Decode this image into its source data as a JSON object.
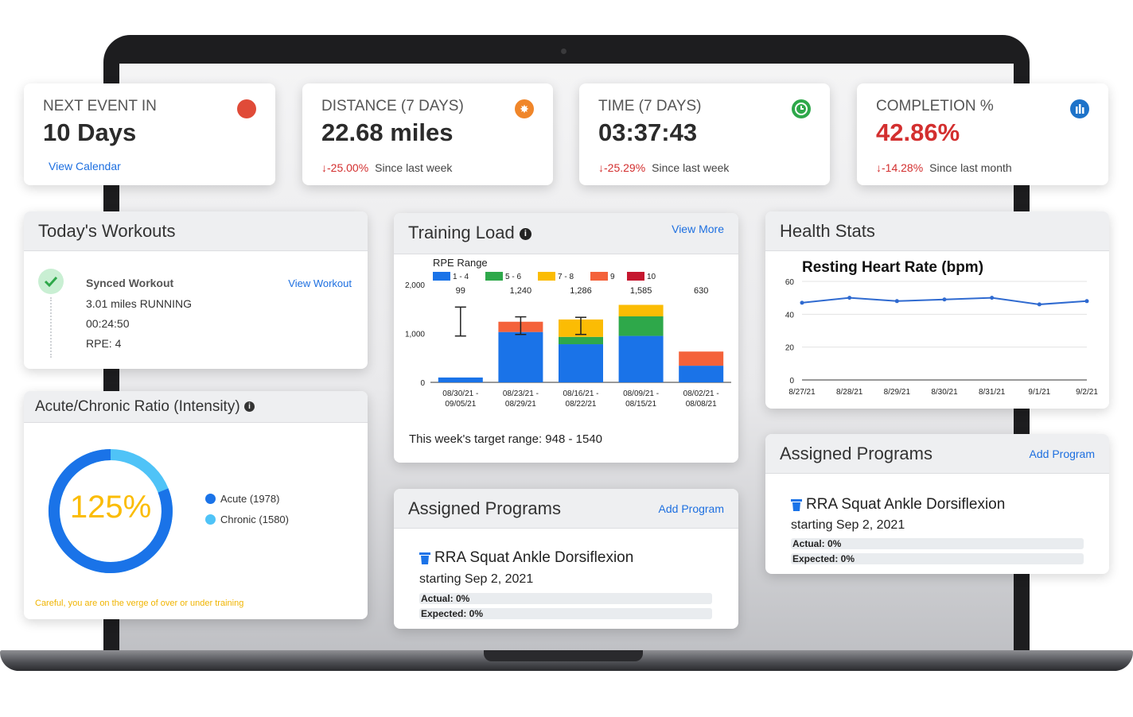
{
  "stats": [
    {
      "label": "NEXT EVENT IN",
      "value": "10 Days",
      "link": "View Calendar",
      "icon": "red-dot-icon",
      "icon_color": "#e04b38"
    },
    {
      "label": "DISTANCE (7 DAYS)",
      "value": "22.68 miles",
      "change": "-25.00%",
      "since": "Since last week",
      "icon": "runner-icon",
      "icon_color": "#f0862a"
    },
    {
      "label": "TIME (7 DAYS)",
      "value": "03:37:43",
      "change": "-25.29%",
      "since": "Since last week",
      "icon": "clock-icon",
      "icon_color": "#2ea84a"
    },
    {
      "label": "COMPLETION %",
      "value": "42.86%",
      "change": "-14.28%",
      "since": "Since last month",
      "icon": "chart-icon",
      "icon_color": "#1e73c9",
      "value_color": "#d32f2f"
    }
  ],
  "workouts": {
    "title": "Today's Workouts",
    "name": "Synced Workout",
    "link": "View Workout",
    "distance": "3.01 miles RUNNING",
    "duration": "00:24:50",
    "rpe": "RPE: 4"
  },
  "acr": {
    "title": "Acute/Chronic Ratio (Intensity)",
    "percent": "125%",
    "acute": "Acute (1978)",
    "chronic": "Chronic (1580)",
    "warning": "Careful, you are on the verge of over or under training",
    "acute_color": "#1a73e8",
    "chronic_color": "#4fc3f7"
  },
  "training": {
    "title": "Training Load",
    "link": "View More",
    "footer": "This week's target range: 948 - 1540"
  },
  "health": {
    "title": "Health Stats"
  },
  "programs_mid": {
    "title": "Assigned Programs",
    "link": "Add Program",
    "program": "RRA Squat Ankle Dorsiflexion",
    "start": "starting Sep 2, 2021",
    "actual": "Actual: 0%",
    "expected": "Expected: 0%"
  },
  "programs_right": {
    "title": "Assigned Programs",
    "link": "Add Program",
    "program": "RRA Squat Ankle Dorsiflexion",
    "start": "starting Sep 2, 2021",
    "actual": "Actual: 0%",
    "expected": "Expected: 0%"
  },
  "chart_data": [
    {
      "type": "bar",
      "stacked": true,
      "legend_title": "RPE Range",
      "categories": [
        "08/30/21 - 09/05/21",
        "08/23/21 - 08/29/21",
        "08/16/21 - 08/22/21",
        "08/09/21 - 08/15/21",
        "08/02/21 - 08/08/21"
      ],
      "totals": [
        "99",
        "1,240",
        "1,286",
        "1,585",
        "630"
      ],
      "series": [
        {
          "name": "1 - 4",
          "color": "#1a73e8",
          "values": [
            99,
            1030,
            780,
            950,
            340
          ]
        },
        {
          "name": "5 - 6",
          "color": "#2ea84a",
          "values": [
            0,
            0,
            150,
            400,
            0
          ]
        },
        {
          "name": "7 - 8",
          "color": "#fbbc04",
          "values": [
            0,
            0,
            356,
            235,
            0
          ]
        },
        {
          "name": "9",
          "color": "#f4623a",
          "values": [
            0,
            210,
            0,
            0,
            290
          ]
        },
        {
          "name": "10",
          "color": "#c5172f",
          "values": [
            0,
            0,
            0,
            0,
            0
          ]
        }
      ],
      "error_bars": [
        [
          948,
          1540
        ],
        [
          980,
          1340
        ],
        [
          980,
          1330
        ],
        null,
        null
      ],
      "yticks": [
        "0",
        "1,000",
        "2,000"
      ],
      "ylim": [
        0,
        2000
      ]
    },
    {
      "type": "line",
      "title": "Resting Heart Rate (bpm)",
      "x": [
        "8/27/21",
        "8/28/21",
        "8/29/21",
        "8/30/21",
        "8/31/21",
        "9/1/21",
        "9/2/21"
      ],
      "values": [
        47,
        50,
        48,
        49,
        50,
        46,
        48
      ],
      "yticks": [
        "0",
        "20",
        "40",
        "60"
      ],
      "ylim": [
        0,
        60
      ],
      "color": "#2f6ad0"
    }
  ]
}
